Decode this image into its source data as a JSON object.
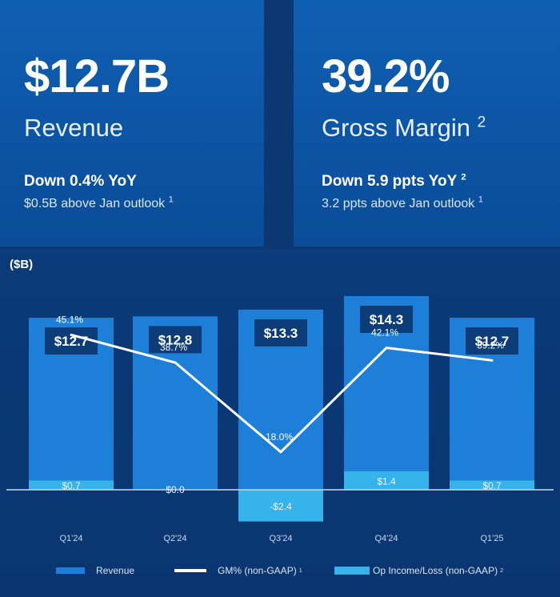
{
  "kpis": {
    "revenue": {
      "value": "$12.7B",
      "label": "Revenue",
      "delta": "Down 0.4% YoY",
      "note": "$0.5B above Jan outlook",
      "note_footnote": "1"
    },
    "gross_margin": {
      "value": "39.2%",
      "label": "Gross Margin",
      "label_footnote": "2",
      "delta": "Down 5.9 ppts YoY",
      "delta_footnote": "2",
      "note": "3.2 ppts above Jan outlook",
      "note_footnote": "1"
    }
  },
  "chart_data": {
    "type": "bar",
    "unit_label": "($B)",
    "categories": [
      "Q1'24",
      "Q2'24",
      "Q3'24",
      "Q4'24",
      "Q1'25"
    ],
    "series": [
      {
        "name": "Revenue",
        "kind": "bar",
        "values": [
          12.7,
          12.8,
          13.3,
          14.3,
          12.7
        ],
        "labels": [
          "$12.7",
          "$12.8",
          "$13.3",
          "$14.3",
          "$12.7"
        ]
      },
      {
        "name": "GM% (non-GAAP)",
        "name_footnote": "1",
        "kind": "line",
        "values": [
          45.1,
          38.7,
          18.0,
          42.1,
          39.2
        ],
        "labels": [
          "45.1%",
          "38.7%",
          "18.0%",
          "42.1%",
          "39.2%"
        ]
      },
      {
        "name": "Op Income/Loss (non-GAAP)",
        "name_footnote": "2",
        "kind": "bar",
        "values": [
          0.7,
          0.0,
          -2.4,
          1.4,
          0.7
        ],
        "labels": [
          "$0.7",
          "$0.0",
          "-$2.4",
          "$1.4",
          "$0.7"
        ]
      }
    ],
    "colors": {
      "revenue": "#1e7fd8",
      "revenue_box": "#0d3d78",
      "op_income": "#36b3ea",
      "gm_line": "#ffffff"
    }
  }
}
